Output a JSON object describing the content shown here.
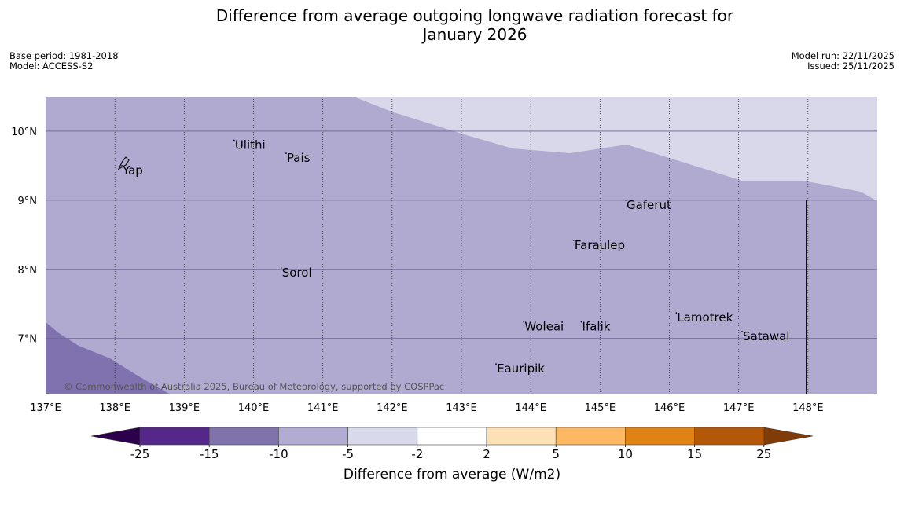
{
  "header": {
    "title_line1": "Difference from average outgoing longwave radiation forecast for",
    "title_line2": "January 2026",
    "base_period": "Base period: 1981-2018",
    "model": "Model: ACCESS-S2",
    "model_run": "Model run: 22/11/2025",
    "issued": "Issued: 25/11/2025"
  },
  "map": {
    "lon_range": [
      137,
      149
    ],
    "lat_range": [
      6.2,
      10.5
    ],
    "lon_ticks": [
      137,
      138,
      139,
      140,
      141,
      142,
      143,
      144,
      145,
      146,
      147,
      148
    ],
    "lat_ticks": [
      7,
      8,
      9,
      10
    ],
    "lon_labels": [
      "137°E",
      "138°E",
      "139°E",
      "140°E",
      "141°E",
      "142°E",
      "143°E",
      "144°E",
      "145°E",
      "146°E",
      "147°E",
      "148°E"
    ],
    "lat_labels": [
      "7°N",
      "8°N",
      "9°N",
      "10°N"
    ],
    "copyright": "© Commonwealth of Australia 2025, Bureau of Meteorology, supported by COSPPac",
    "colors": {
      "band_-10_-5": "#b0aad1",
      "band_-5_-2": "#d8d8ea",
      "band_-15_-10": "#8072ae"
    },
    "boundary_line_lon": 148,
    "places": [
      {
        "name": "Ulithi",
        "lon": 139.72,
        "lat": 9.87
      },
      {
        "name": "Pais",
        "lon": 140.47,
        "lat": 9.68
      },
      {
        "name": "Yap",
        "lon": 138.1,
        "lat": 9.5
      },
      {
        "name": "Gaferut",
        "lon": 145.37,
        "lat": 9.0
      },
      {
        "name": "Faraulep",
        "lon": 144.62,
        "lat": 8.42
      },
      {
        "name": "Sorol",
        "lon": 140.4,
        "lat": 8.02
      },
      {
        "name": "Lamotrek",
        "lon": 146.1,
        "lat": 7.37
      },
      {
        "name": "Woleai",
        "lon": 143.9,
        "lat": 7.24
      },
      {
        "name": "Ifalik",
        "lon": 144.73,
        "lat": 7.24
      },
      {
        "name": "Satawal",
        "lon": 147.05,
        "lat": 7.1
      },
      {
        "name": "Eauripik",
        "lon": 143.5,
        "lat": 6.63
      }
    ]
  },
  "colorbar": {
    "label": "Difference from average (W/m2)",
    "tick_labels": [
      "-25",
      "-15",
      "-10",
      "-5",
      "-2",
      "2",
      "5",
      "10",
      "15",
      "25"
    ],
    "under_color": "#2d004b",
    "over_color": "#7f3b08",
    "colors": [
      "#542788",
      "#8073ac",
      "#b2abd2",
      "#d8daeb",
      "#ffffff",
      "#fee0b6",
      "#fdb863",
      "#e08214",
      "#b35806"
    ]
  }
}
